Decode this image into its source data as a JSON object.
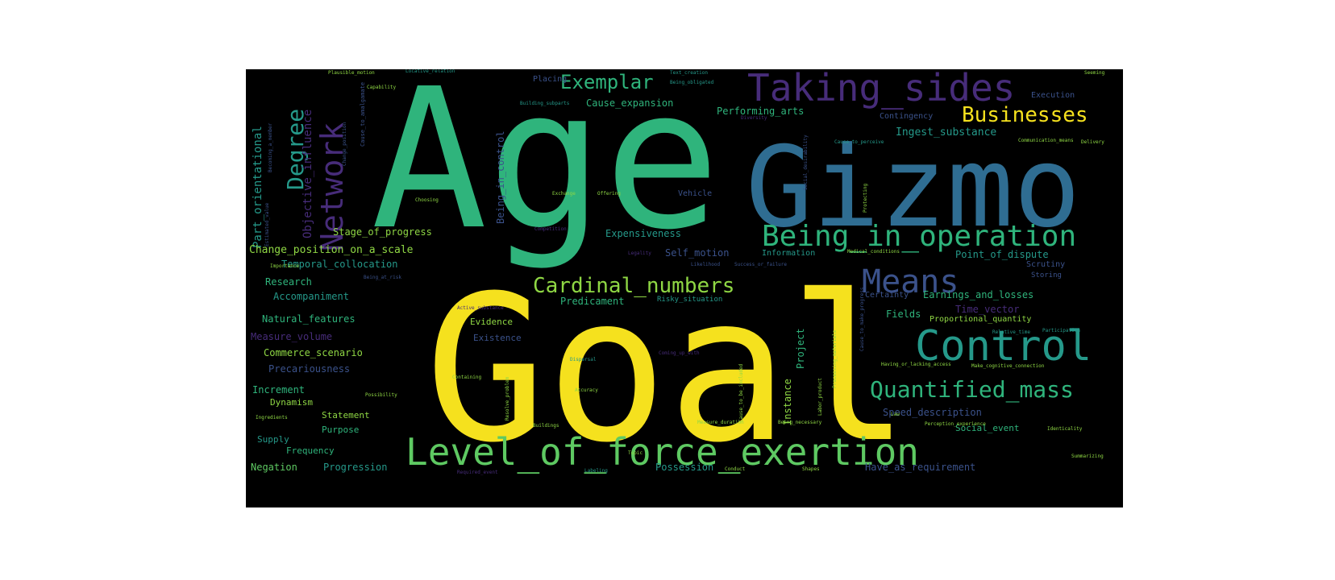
{
  "palette": {
    "yellow": "#f5e11e",
    "green": "#5ec962",
    "teal": "#2fb47c",
    "cyan": "#25998a",
    "blue": "#2f6d92",
    "navy": "#3b528b",
    "purple": "#472c7a",
    "olive": "#8fd744",
    "background": "#000000"
  },
  "words": {
    "age": "Age",
    "goal": "Goal",
    "gizmo": "Gizmo",
    "taking_sides": "Taking_sides",
    "network": "Network",
    "level_of_force_exertion": "Level_of_force_exertion",
    "control": "Control",
    "being_in_operation": "Being_in_operation",
    "means": "Means",
    "cardinal_numbers": "Cardinal_numbers",
    "businesses": "Businesses",
    "exemplar": "Exemplar",
    "degree": "Degree",
    "quantified_mass": "Quantified_mass",
    "objective_influence": "Objective_influence",
    "part_orientational": "Part_orientational",
    "being_in_control": "Being_in_control",
    "cause_expansion": "Cause_expansion",
    "performing_arts": "Performing_arts",
    "ingest_substance": "Ingest_substance",
    "contingency": "Contingency",
    "stage_of_progress": "Stage_of_progress",
    "expensiveness": "Expensiveness",
    "change_position_on_a_scale": "Change_position_on_a_scale",
    "temporal_collocation": "Temporal_collocation",
    "self_motion": "Self_motion",
    "point_of_dispute": "Point_of_dispute",
    "scrutiny": "Scrutiny",
    "storing": "Storing",
    "research": "Research",
    "accompaniment": "Accompaniment",
    "predicament": "Predicament",
    "risky_situation": "Risky_situation",
    "certainty": "Certainty",
    "earnings_and_losses": "Earnings_and_losses",
    "time_vector": "Time_vector",
    "natural_features": "Natural_features",
    "evidence": "Evidence",
    "fields": "Fields",
    "proportional_quantity": "Proportional_quantity",
    "measure_volume": "Measure_volume",
    "existence": "Existence",
    "commerce_scenario": "Commerce_scenario",
    "precariousness": "Precariousness",
    "increment": "Increment",
    "dynamism": "Dynamism",
    "statement": "Statement",
    "purpose": "Purpose",
    "supply": "Supply",
    "frequency": "Frequency",
    "negation": "Negation",
    "progression": "Progression",
    "possession": "Possession",
    "speed_description": "Speed_description",
    "social_event": "Social_event",
    "have_as_requirement": "Have_as_requirement",
    "project": "Project",
    "instance": "Instance",
    "vehicle": "Vehicle",
    "information": "Information",
    "placing": "Placing",
    "execution": "Execution",
    "capability": "Capability",
    "building_subparts": "Building_subparts",
    "locative_relation": "Locative_relation",
    "plausible_motion": "Plausible_motion",
    "being_obligated": "Being_obligated",
    "text_creation": "Text_creation",
    "diversity": "Diversity",
    "seeming": "Seeming",
    "delivery": "Delivery",
    "communication_means": "Communication_means",
    "cause_to_perceive": "Cause_to_perceive",
    "choosing": "Choosing",
    "exchange": "Exchange",
    "offering": "Offering",
    "competition": "Competition",
    "legality": "Legality",
    "likelihood": "Likelihood",
    "success_or_failure": "Success_or_failure",
    "medical_conditions": "Medical_conditions",
    "importance": "Importance",
    "being_at_risk": "Being_at_risk",
    "active_substance": "Active_substance",
    "relative_time": "Relative_time",
    "participation": "Participation",
    "containing": "Containing",
    "dispersal": "Dispersal",
    "accuracy": "Accuracy",
    "resolve_problem": "Resolve_problem",
    "possibility": "Possibility",
    "ingredients": "Ingredients",
    "buildings": "Buildings",
    "measure_duration": "Measure_duration",
    "being_necessary": "Being_necessary",
    "law": "Law",
    "perception_experience": "Perception_experience",
    "identicality": "Identicality",
    "topic": "Topic",
    "labeling": "Labeling",
    "required_event": "Required_event",
    "conduct": "Conduct",
    "shapes": "Shapes",
    "summarizing": "Summarizing",
    "labor_product": "Labor_product",
    "processing_materials": "Processing_materials",
    "having_or_lacking_access": "Having_or_lacking_access",
    "make_cognitive_connection": "Make_cognitive_connection",
    "social_desirability": "Social_desirability",
    "protecting": "Protecting",
    "cause_to_make_progress": "Cause_to_make_progress",
    "estimated_value": "Estimated_value",
    "cause_to_amalgamate": "Cause_to_amalgamate",
    "becoming_a_member": "Becoming_a_member",
    "change_position": "Change_position",
    "cause_to_be_included": "Cause_to_be_included",
    "coming_up_with": "Coming_up_with"
  }
}
